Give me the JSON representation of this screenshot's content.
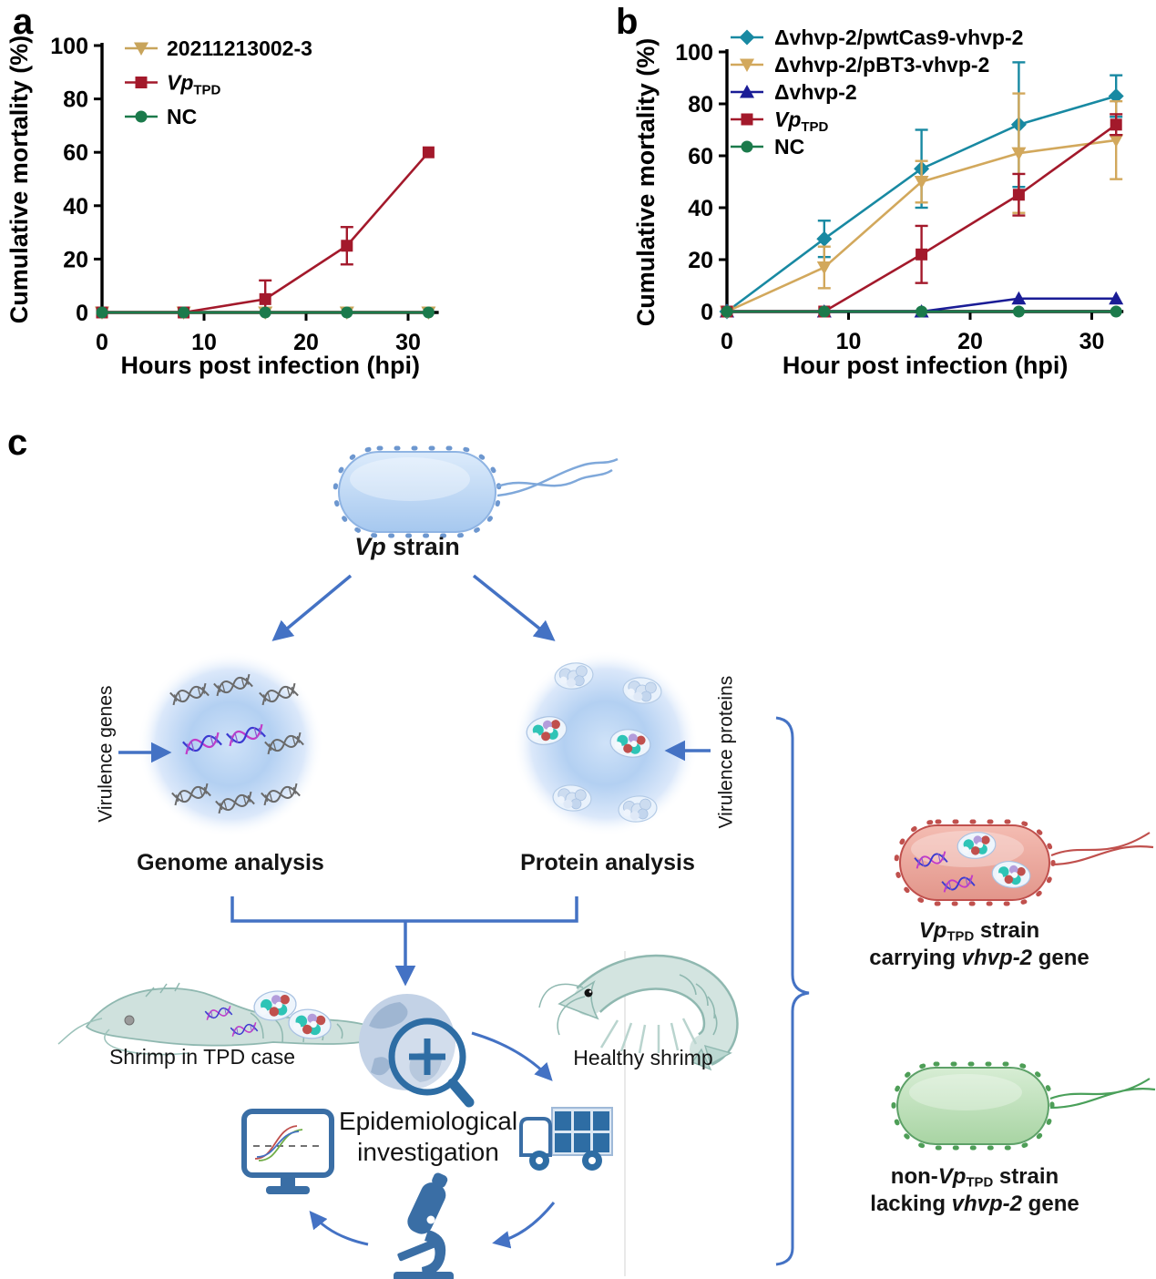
{
  "figure": {
    "panel_labels": {
      "a": "a",
      "b": "b",
      "c": "c"
    }
  },
  "chart_data": [
    {
      "id": "a",
      "type": "line",
      "title": "",
      "xlabel": "Hours post infection (hpi)",
      "ylabel": "Cumulative mortality (%)",
      "x": [
        0,
        8,
        16,
        24,
        32
      ],
      "xticks": [
        0,
        10,
        20,
        30
      ],
      "yticks": [
        0,
        20,
        40,
        60,
        80,
        100
      ],
      "xlim": [
        0,
        33
      ],
      "ylim": [
        0,
        100
      ],
      "grid": false,
      "legend_position": "inside top-left",
      "series": [
        {
          "name": [
            {
              "t": "20211213002-3"
            }
          ],
          "marker": "triangle-down",
          "color": "#C8A45B",
          "values": [
            0,
            0,
            0,
            0,
            0
          ],
          "err": [
            0,
            0,
            0,
            0,
            0
          ]
        },
        {
          "name": [
            {
              "t": "Vp",
              "i": true
            },
            {
              "t": "TPD",
              "sub": true
            }
          ],
          "marker": "square",
          "color": "#A3192B",
          "values": [
            0,
            0,
            5,
            25,
            60
          ],
          "err": [
            0,
            0,
            7,
            7,
            0
          ]
        },
        {
          "name": [
            {
              "t": "NC"
            }
          ],
          "marker": "circle",
          "color": "#1B7A4B",
          "values": [
            0,
            0,
            0,
            0,
            0
          ],
          "err": [
            0,
            0,
            0,
            0,
            0
          ]
        }
      ]
    },
    {
      "id": "b",
      "type": "line",
      "title": "",
      "xlabel": "Hour post infection (hpi)",
      "ylabel": "Cumulative mortality (%)",
      "x": [
        0,
        8,
        16,
        24,
        32
      ],
      "xticks": [
        0,
        10,
        20,
        30
      ],
      "yticks": [
        0,
        20,
        40,
        60,
        80,
        100
      ],
      "xlim": [
        0,
        32.6
      ],
      "ylim": [
        0,
        100
      ],
      "grid": false,
      "legend_position": "inside top-left",
      "series": [
        {
          "name": [
            {
              "t": "Δvhvp-2/pwtCas9-vhvp-2"
            }
          ],
          "marker": "diamond",
          "color": "#1889A2",
          "values": [
            0,
            28,
            55,
            72,
            83
          ],
          "err": [
            0,
            7,
            15,
            24,
            8
          ]
        },
        {
          "name": [
            {
              "t": "Δvhvp-2/pBT3-vhvp-2"
            }
          ],
          "marker": "triangle-down",
          "color": "#D2A85C",
          "values": [
            0,
            17,
            50,
            61,
            66
          ],
          "err": [
            0,
            8,
            8,
            23,
            15
          ]
        },
        {
          "name": [
            {
              "t": "Δvhvp-2"
            }
          ],
          "marker": "triangle-up",
          "color": "#1A1C96",
          "values": [
            0,
            0,
            0,
            5,
            5
          ],
          "err": [
            0,
            0,
            0,
            0,
            0
          ]
        },
        {
          "name": [
            {
              "t": "Vp",
              "i": true
            },
            {
              "t": "TPD",
              "sub": true
            }
          ],
          "marker": "square",
          "color": "#A3192B",
          "values": [
            0,
            0,
            22,
            45,
            72
          ],
          "err": [
            0,
            0,
            11,
            8,
            4
          ]
        },
        {
          "name": [
            {
              "t": "NC"
            }
          ],
          "marker": "circle",
          "color": "#1B7A4B",
          "values": [
            0,
            0,
            0,
            0,
            0
          ],
          "err": [
            0,
            0,
            0,
            0,
            0
          ]
        }
      ]
    }
  ],
  "diagram": {
    "vp_strain": [
      {
        "t": "Vp",
        "i": true
      },
      {
        "t": " strain"
      }
    ],
    "virulence_genes": "Virulence genes",
    "virulence_proteins": "Virulence proteins",
    "genome_analysis": "Genome analysis",
    "protein_analysis": "Protein analysis",
    "shrimp_tpd": "Shrimp in TPD case",
    "healthy_shrimp": "Healthy shrimp",
    "epidemiological_line1": "Epidemiological",
    "epidemiological_line2": "investigation",
    "tpd_strain_line1": [
      {
        "t": "Vp",
        "i": true
      },
      {
        "t": "TPD",
        "sub": true
      },
      {
        "t": " strain"
      }
    ],
    "tpd_strain_line2": [
      {
        "t": "carrying "
      },
      {
        "t": "vhvp-2",
        "i": true
      },
      {
        "t": " gene"
      }
    ],
    "non_tpd_line1": [
      {
        "t": "non-"
      },
      {
        "t": "Vp",
        "i": true
      },
      {
        "t": "TPD",
        "sub": true
      },
      {
        "t": " strain"
      }
    ],
    "non_tpd_line2": [
      {
        "t": "lacking "
      },
      {
        "t": "vhvp-2",
        "i": true
      },
      {
        "t": " gene"
      }
    ],
    "icons": [
      "vibrio-bacterium",
      "dna-helix",
      "protein-molecule",
      "globe-magnifier",
      "monitor-chart",
      "transport-truck",
      "microscope",
      "shrimp"
    ],
    "colors": {
      "arrow_blue": "#4472C4",
      "bacterium_blue": "#b8d4f2",
      "bacterium_red": "#eba99e",
      "bacterium_green": "#c3e2bf",
      "icon_steel_blue": "#3a6ea5",
      "analysis_circle": "#b9d2f3"
    }
  }
}
